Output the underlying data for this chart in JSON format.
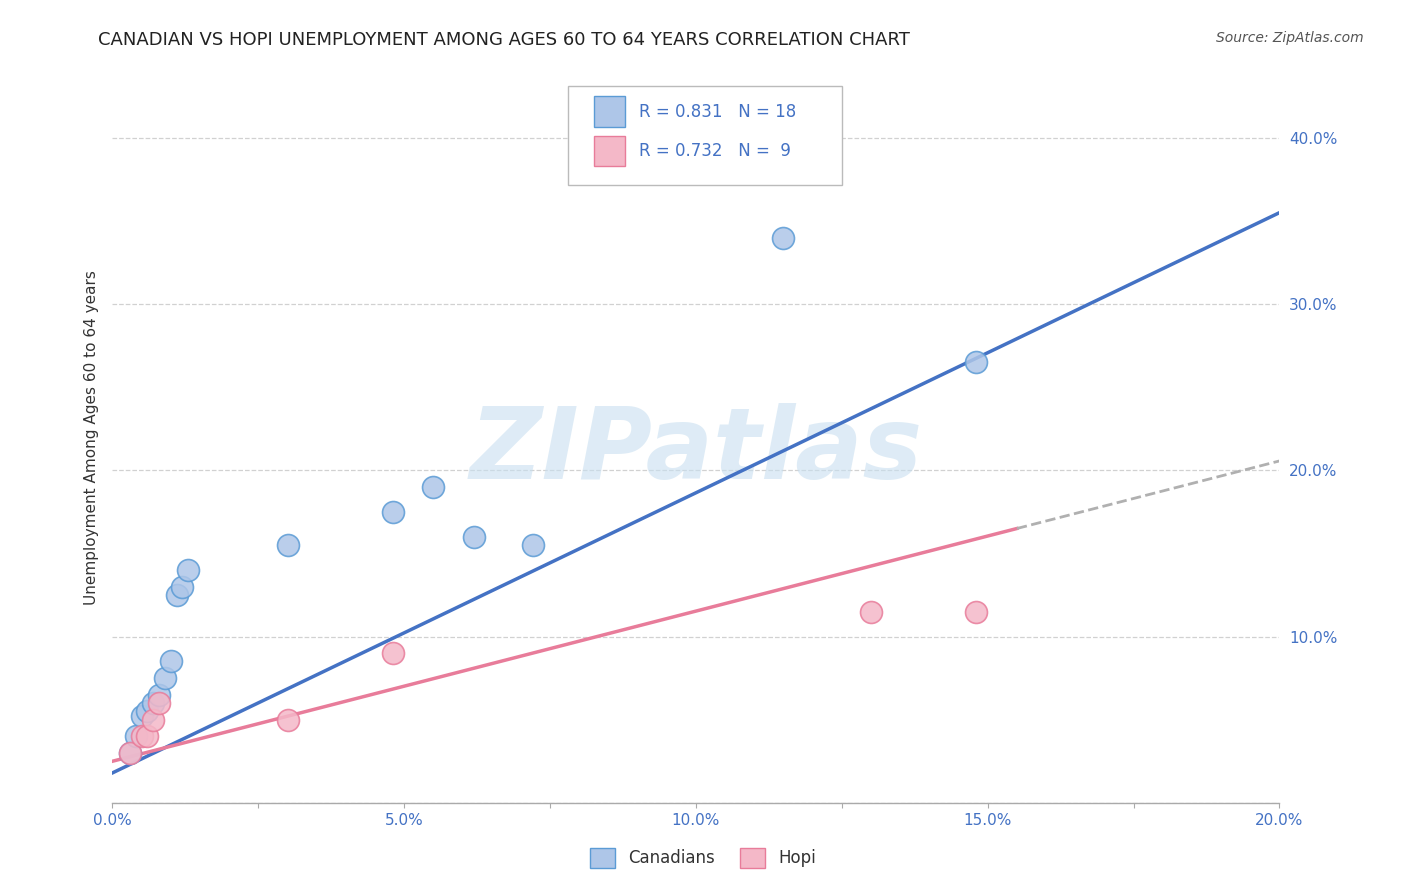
{
  "title": "CANADIAN VS HOPI UNEMPLOYMENT AMONG AGES 60 TO 64 YEARS CORRELATION CHART",
  "source": "Source: ZipAtlas.com",
  "xlabel": "",
  "ylabel": "Unemployment Among Ages 60 to 64 years",
  "xlim": [
    0.0,
    0.2
  ],
  "ylim": [
    0.0,
    0.44
  ],
  "xticks": [
    0.0,
    0.025,
    0.05,
    0.075,
    0.1,
    0.125,
    0.15,
    0.175,
    0.2
  ],
  "xticklabels": [
    "0.0%",
    "",
    "5.0%",
    "",
    "10.0%",
    "",
    "15.0%",
    "",
    "20.0%"
  ],
  "yticks": [
    0.0,
    0.1,
    0.2,
    0.3,
    0.4
  ],
  "yticklabels": [
    "",
    "10.0%",
    "20.0%",
    "30.0%",
    "40.0%"
  ],
  "canadian_x": [
    0.003,
    0.004,
    0.005,
    0.006,
    0.007,
    0.008,
    0.009,
    0.01,
    0.011,
    0.012,
    0.013,
    0.03,
    0.048,
    0.055,
    0.062,
    0.072,
    0.115,
    0.148
  ],
  "canadian_y": [
    0.03,
    0.04,
    0.052,
    0.055,
    0.06,
    0.065,
    0.075,
    0.085,
    0.125,
    0.13,
    0.14,
    0.155,
    0.175,
    0.19,
    0.16,
    0.155,
    0.34,
    0.265
  ],
  "hopi_x": [
    0.003,
    0.005,
    0.006,
    0.007,
    0.008,
    0.03,
    0.048,
    0.13,
    0.148
  ],
  "hopi_y": [
    0.03,
    0.04,
    0.04,
    0.05,
    0.06,
    0.05,
    0.09,
    0.115,
    0.115
  ],
  "canadian_color": "#aec6e8",
  "canadian_edge_color": "#5b9bd5",
  "hopi_color": "#f4b8c8",
  "hopi_edge_color": "#e87c9a",
  "canadian_line_color": "#4472c4",
  "hopi_line_color": "#e87c9a",
  "hopi_dashed_color": "#b0b0b0",
  "R_canadian": 0.831,
  "N_canadian": 18,
  "R_hopi": 0.732,
  "N_hopi": 9,
  "legend_label_canadian": "Canadians",
  "legend_label_hopi": "Hopi",
  "background_color": "#ffffff",
  "grid_color": "#cccccc",
  "marker_size": 250,
  "title_fontsize": 13,
  "axis_label_fontsize": 11,
  "tick_fontsize": 11,
  "watermark_text": "ZIPatlas",
  "watermark_color": "#c8dff0",
  "watermark_fontsize": 72
}
